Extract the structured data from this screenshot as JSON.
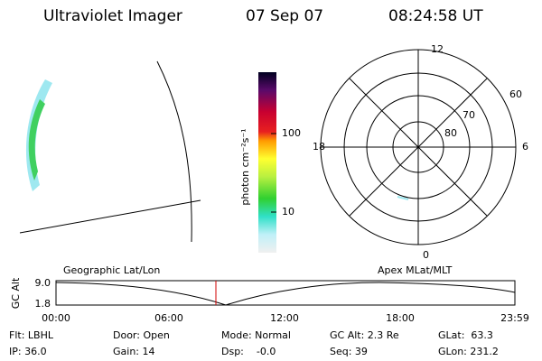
{
  "header": {
    "title": "Ultraviolet Imager",
    "date": "07 Sep 07",
    "time": "08:24:58 UT"
  },
  "colorbar": {
    "label": "photon cm⁻²s⁻¹",
    "ticks": [
      "100",
      "10"
    ]
  },
  "polar": {
    "mlt_labels": [
      "12",
      "18",
      "6",
      "0"
    ],
    "lat_labels": [
      "60",
      "70",
      "80"
    ]
  },
  "orbit": {
    "left_label": "Geographic Lat/Lon",
    "right_label": "Apex MLat/MLT",
    "y_label": "GC Alt",
    "y_ticks": [
      "9.0",
      "1.8"
    ],
    "x_ticks": [
      "00:00",
      "06:00",
      "12:00",
      "18:00",
      "23:59"
    ]
  },
  "footer": {
    "rows": [
      [
        "Flt: LBHL",
        "Door: Open",
        "Mode: Normal",
        "GC Alt: 2.3 Re",
        "GLat:  63.3"
      ],
      [
        "IP: 36.0",
        "Gain: 14",
        "Dsp:    -0.0",
        "Seq: 39",
        "GLon: 231.2"
      ]
    ]
  }
}
